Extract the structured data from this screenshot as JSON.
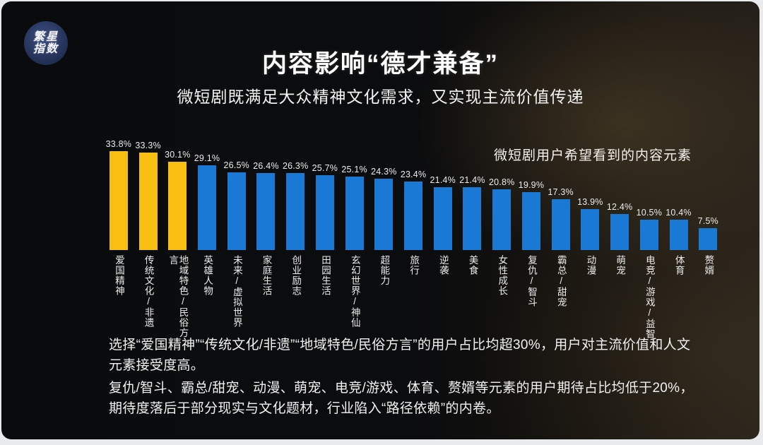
{
  "logo": {
    "line1": "繁星",
    "line2": "指数"
  },
  "header": {
    "title": "内容影响“德才兼备”",
    "subtitle": "微短剧既满足大众精神文化需求，又实现主流价值传递"
  },
  "chart_data": {
    "type": "bar",
    "title": "微短剧用户希望看到的内容元素",
    "categories": [
      "爱国精神",
      "传统文化/非遗",
      "地域特色/民俗方言",
      "英雄人物",
      "未来/虚拟世界",
      "家庭生活",
      "创业励志",
      "田园生活",
      "玄幻世界/神仙",
      "超能力",
      "旅行",
      "逆袭",
      "美食",
      "女性成长",
      "复仇/智斗",
      "霸总/甜宠",
      "动漫",
      "萌宠",
      "电竞/游戏/益智",
      "体育",
      "赘婿"
    ],
    "values": [
      33.8,
      33.3,
      30.1,
      29.1,
      26.5,
      26.4,
      26.3,
      25.7,
      25.1,
      24.3,
      23.4,
      21.4,
      21.4,
      20.8,
      19.9,
      17.3,
      13.9,
      12.4,
      10.5,
      10.4,
      7.5
    ],
    "unit": "%",
    "ylim": [
      0,
      35
    ],
    "grid": false,
    "legend_position": "none",
    "highlight_count": 3,
    "highlight_color": "#F8BE12",
    "bar_color": "#1B79D6",
    "value_label_format": "one-decimal-percent"
  },
  "notes": {
    "paragraph1": "选择“爱国精神”“传统文化/非遗”“地域特色/民俗方言”的用户占比均超30%，用户对主流价值和人文元素接受度高。",
    "paragraph2": "复仇/智斗、霸总/甜宠、动漫、萌宠、电竞/游戏、体育、赘婿等元素的用户期待占比均低于20%，期待度落后于部分现实与文化题材，行业陷入“路径依赖”的内卷。"
  }
}
